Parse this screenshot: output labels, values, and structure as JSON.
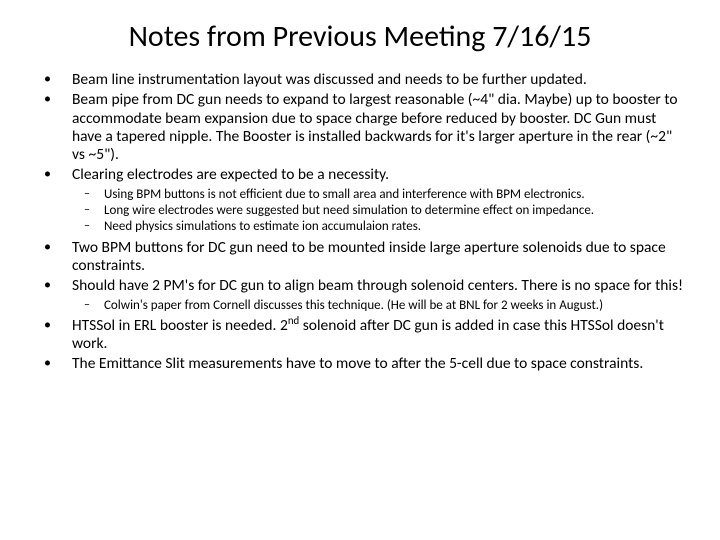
{
  "title": "Notes from Previous Meeting 7/16/15",
  "bullets": [
    "Beam line instrumentation layout was discussed and needs to be further updated.",
    "Beam pipe from DC gun needs to expand to largest reasonable (~4\" dia. Maybe) up to booster to accommodate beam expansion due to space charge before reduced by booster.  DC Gun must have a tapered nipple.  The Booster is installed backwards for it's larger aperture in the rear (~2\" vs ~5\").",
    "Clearing electrodes are expected to be a necessity."
  ],
  "sub1": [
    "Using BPM buttons is not efficient due to small area and interference with BPM electronics.",
    "Long wire electrodes were suggested but need simulation to determine effect on impedance.",
    "Need physics simulations to estimate ion accumulaion rates."
  ],
  "bullets2": [
    "Two BPM buttons for DC gun need to be mounted inside large aperture solenoids due to space constraints.",
    "Should have 2 PM's for DC gun to align beam through solenoid centers.  There is no space for this!"
  ],
  "sub2": [
    "Colwin's paper from Cornell discusses this technique. (He will be at BNL for 2 weeks in August.)"
  ],
  "bullets3a_pre": "HTSSol in ERL booster is needed. 2",
  "bullets3a_sup": "nd",
  "bullets3a_post": " solenoid after DC gun is added in case this HTSSol doesn't work.",
  "bullets3b": "The Emittance Slit measurements have to move to after the 5-cell due to space constraints."
}
